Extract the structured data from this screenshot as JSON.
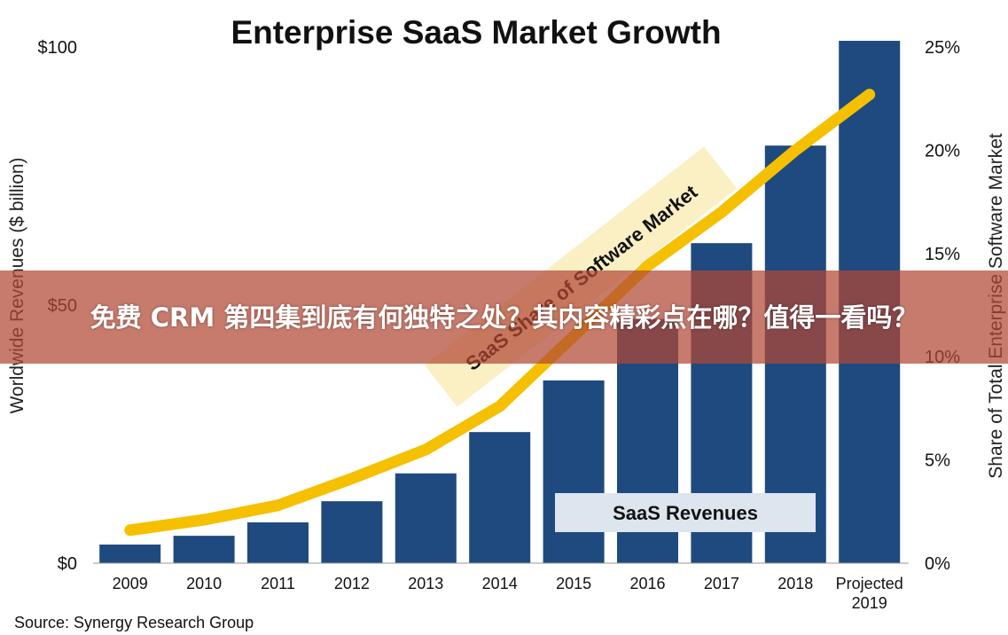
{
  "chart_data": {
    "type": "bar",
    "title": "Enterprise SaaS Market Growth",
    "categories": [
      "2009",
      "2010",
      "2011",
      "2012",
      "2013",
      "2014",
      "2015",
      "2016",
      "2017",
      "2018",
      "Projected 2019"
    ],
    "series": [
      {
        "name": "SaaS Revenues",
        "type": "bar",
        "axis": "left",
        "color": "#1f4a7f",
        "values": [
          3.6,
          5.3,
          7.9,
          12.0,
          17.4,
          25.4,
          35.4,
          47.3,
          62.0,
          80.9,
          101.2
        ]
      },
      {
        "name": "SaaS Share of Software Market",
        "type": "line",
        "axis": "right",
        "color": "#f5c000",
        "values": [
          1.6,
          2.1,
          2.8,
          4.1,
          5.5,
          7.6,
          11.0,
          14.4,
          17.0,
          20.0,
          22.7
        ]
      }
    ],
    "ylabel": "Worldwide Revenues ($ billion)",
    "ylim": [
      0,
      100
    ],
    "yticks": [
      "$0",
      "$50",
      "$100"
    ],
    "y2label": "Share of Total Enterprise Software Market",
    "y2lim": [
      0,
      25
    ],
    "y2ticks": [
      "0%",
      "5%",
      "10%",
      "15%",
      "20%",
      "25%"
    ],
    "grid": false,
    "legend_placement": "bottom-right",
    "source": "Source: Synergy Research Group"
  },
  "overlay": {
    "banner_text": "免费 CRM 第四集到底有何独特之处？其内容精彩点在哪？值得一看吗？"
  }
}
